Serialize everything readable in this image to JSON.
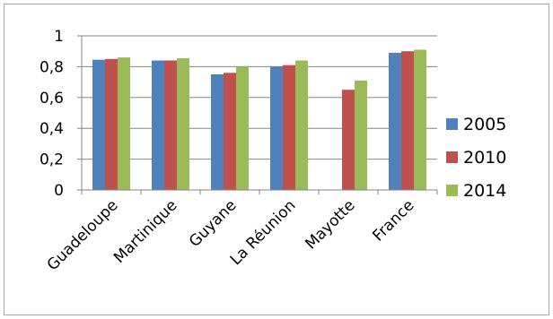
{
  "chart_data": {
    "type": "bar",
    "categories": [
      "Guadeloupe",
      "Martinique",
      "Guyane",
      "La Réunion",
      "Mayotte",
      "France"
    ],
    "series": [
      {
        "name": "2005",
        "color": "#4f81bd",
        "values": [
          0.845,
          0.84,
          0.75,
          0.8,
          null,
          0.89
        ]
      },
      {
        "name": "2010",
        "color": "#c0504d",
        "values": [
          0.85,
          0.84,
          0.76,
          0.81,
          0.65,
          0.9
        ]
      },
      {
        "name": "2014",
        "color": "#9bbb59",
        "values": [
          0.86,
          0.855,
          0.8,
          0.84,
          0.71,
          0.91
        ]
      }
    ],
    "ylim": [
      0,
      1
    ],
    "yticks": [
      "0",
      "0,2",
      "0,4",
      "0,6",
      "0,8",
      "1"
    ],
    "ytick_values": [
      0,
      0.2,
      0.4,
      0.6,
      0.8,
      1
    ],
    "grid": true,
    "legend_position": "right"
  }
}
